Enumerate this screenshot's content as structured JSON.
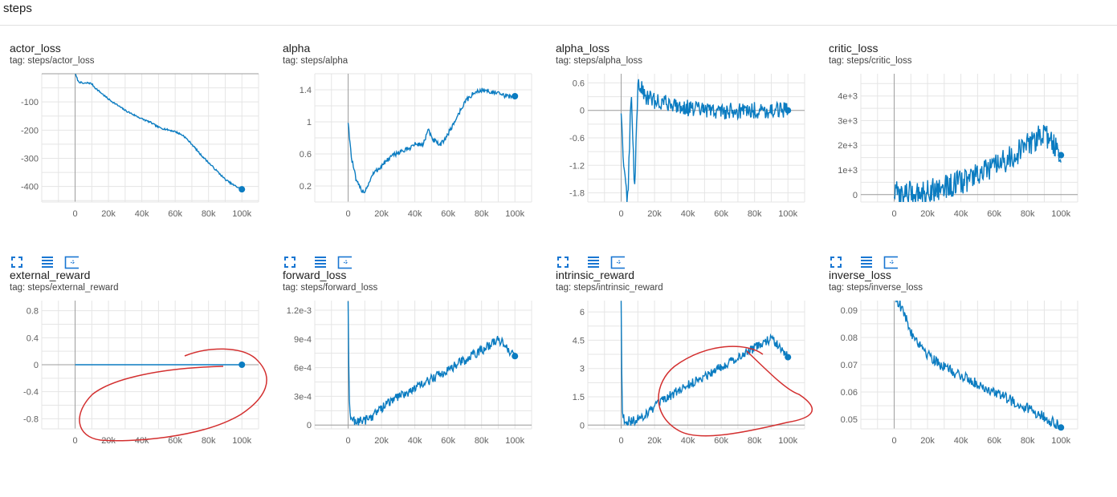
{
  "page": {
    "title": "steps"
  },
  "colors": {
    "line": "#0b7cc1",
    "grid": "#e5e5e5",
    "axis": "#9e9e9e",
    "annotation": "#d32f2f"
  },
  "icons": [
    "fullscreen-icon",
    "toggle-log-scale-icon",
    "fit-domain-icon"
  ],
  "chart_data": [
    {
      "type": "line",
      "title": "actor_loss",
      "tag": "tag: steps/actor_loss",
      "xlim": [
        -20000,
        110000
      ],
      "ylim": [
        -455,
        0
      ],
      "xticks": [
        0,
        20000,
        40000,
        60000,
        80000,
        100000
      ],
      "xtick_labels": [
        "0",
        "20k",
        "40k",
        "60k",
        "80k",
        "100k"
      ],
      "yticks": [
        -100,
        -200,
        -300,
        -400
      ],
      "ytick_labels": [
        "-100",
        "-200",
        "-300",
        "-400"
      ],
      "series": [
        {
          "x": [
            0,
            2000,
            5000,
            8000,
            10000,
            12000,
            15000,
            20000,
            25000,
            30000,
            35000,
            40000,
            45000,
            50000,
            55000,
            60000,
            65000,
            70000,
            75000,
            80000,
            85000,
            90000,
            95000,
            100000
          ],
          "y": [
            0,
            -28,
            -35,
            -32,
            -36,
            -50,
            -65,
            -90,
            -110,
            -130,
            -145,
            -160,
            -172,
            -190,
            -198,
            -205,
            -220,
            -250,
            -285,
            -315,
            -345,
            -375,
            -395,
            -410
          ],
          "noise": 3
        }
      ]
    },
    {
      "type": "line",
      "title": "alpha",
      "tag": "tag: steps/alpha",
      "xlim": [
        -20000,
        110000
      ],
      "ylim": [
        0,
        1.6
      ],
      "xticks": [
        0,
        20000,
        40000,
        60000,
        80000,
        100000
      ],
      "xtick_labels": [
        "0",
        "20k",
        "40k",
        "60k",
        "80k",
        "100k"
      ],
      "yticks": [
        0.2,
        0.6,
        1,
        1.4
      ],
      "ytick_labels": [
        "0.2",
        "0.6",
        "1",
        "1.4"
      ],
      "series": [
        {
          "x": [
            0,
            2000,
            5000,
            8000,
            10000,
            12000,
            15000,
            20000,
            25000,
            30000,
            35000,
            40000,
            45000,
            48000,
            50000,
            55000,
            60000,
            65000,
            70000,
            75000,
            80000,
            85000,
            90000,
            95000,
            100000
          ],
          "y": [
            1.0,
            0.55,
            0.25,
            0.15,
            0.13,
            0.22,
            0.35,
            0.45,
            0.55,
            0.62,
            0.65,
            0.72,
            0.72,
            0.9,
            0.8,
            0.7,
            0.85,
            1.05,
            1.25,
            1.35,
            1.4,
            1.38,
            1.35,
            1.32,
            1.32
          ],
          "noise": 0.03
        }
      ]
    },
    {
      "type": "line",
      "title": "alpha_loss",
      "tag": "tag: steps/alpha_loss",
      "xlim": [
        -20000,
        110000
      ],
      "ylim": [
        -2.0,
        0.8
      ],
      "xticks": [
        0,
        20000,
        40000,
        60000,
        80000,
        100000
      ],
      "xtick_labels": [
        "0",
        "20k",
        "40k",
        "60k",
        "80k",
        "100k"
      ],
      "yticks": [
        0.6,
        0,
        -0.6,
        -1.2,
        -1.8
      ],
      "ytick_labels": [
        "0.6",
        "0",
        "-0.6",
        "-1.2",
        "-1.8"
      ],
      "series": [
        {
          "x": [
            0,
            2000,
            4000,
            6000,
            8000,
            10000,
            15000,
            20000,
            30000,
            40000,
            50000,
            60000,
            70000,
            80000,
            90000,
            100000
          ],
          "y": [
            0,
            -1.5,
            -2.0,
            0.5,
            -1.8,
            0.6,
            0.3,
            0.2,
            0.15,
            0.05,
            0.0,
            -0.02,
            0.0,
            0.0,
            0.0,
            0.0
          ],
          "noise": 0.18
        }
      ]
    },
    {
      "type": "line",
      "title": "critic_loss",
      "tag": "tag: steps/critic_loss",
      "xlim": [
        -20000,
        110000
      ],
      "ylim": [
        -300,
        4900
      ],
      "xticks": [
        0,
        20000,
        40000,
        60000,
        80000,
        100000
      ],
      "xtick_labels": [
        "0",
        "20k",
        "40k",
        "60k",
        "80k",
        "100k"
      ],
      "yticks": [
        0,
        1000,
        2000,
        3000,
        4000
      ],
      "ytick_labels": [
        "0",
        "1e+3",
        "2e+3",
        "3e+3",
        "4e+3"
      ],
      "series": [
        {
          "x": [
            0,
            5000,
            10000,
            20000,
            30000,
            40000,
            50000,
            60000,
            70000,
            80000,
            90000,
            100000
          ],
          "y": [
            50,
            30,
            60,
            150,
            300,
            500,
            800,
            1100,
            1500,
            2000,
            2500,
            1600
          ],
          "noise": 500
        }
      ]
    },
    {
      "type": "line",
      "title": "external_reward",
      "tag": "tag: steps/external_reward",
      "xlim": [
        -20000,
        110000
      ],
      "ylim": [
        -0.95,
        0.95
      ],
      "xticks": [
        0,
        20000,
        40000,
        60000,
        80000,
        100000
      ],
      "xtick_labels": [
        "0",
        "20k",
        "40k",
        "60k",
        "80k",
        "100k"
      ],
      "yticks": [
        0.8,
        0.4,
        0,
        -0.4,
        -0.8
      ],
      "ytick_labels": [
        "0.8",
        "0.4",
        "0",
        "-0.4",
        "-0.8"
      ],
      "series": [
        {
          "x": [
            0,
            100000
          ],
          "y": [
            0,
            0
          ],
          "noise": 0
        }
      ]
    },
    {
      "type": "line",
      "title": "forward_loss",
      "tag": "tag: steps/forward_loss",
      "xlim": [
        -20000,
        110000
      ],
      "ylim": [
        -4e-05,
        0.0013
      ],
      "xticks": [
        0,
        20000,
        40000,
        60000,
        80000,
        100000
      ],
      "xtick_labels": [
        "0",
        "20k",
        "40k",
        "60k",
        "80k",
        "100k"
      ],
      "yticks": [
        0,
        0.0003,
        0.0006,
        0.0009,
        0.0012
      ],
      "ytick_labels": [
        "0",
        "3e-4",
        "6e-4",
        "9e-4",
        "1.2e-3"
      ],
      "series": [
        {
          "x": [
            0,
            500,
            1000,
            3000,
            6000,
            10000,
            15000,
            20000,
            30000,
            40000,
            50000,
            60000,
            70000,
            80000,
            90000,
            100000
          ],
          "y": [
            0.0013,
            0.0004,
            0.0001,
            5e-05,
            4e-05,
            5e-05,
            0.0001,
            0.00018,
            0.0003,
            0.00038,
            0.00048,
            0.00058,
            0.00068,
            0.00078,
            0.0009,
            0.00072
          ],
          "noise": 5e-05
        }
      ]
    },
    {
      "type": "line",
      "title": "intrinsic_reward",
      "tag": "tag: steps/intrinsic_reward",
      "xlim": [
        -20000,
        110000
      ],
      "ylim": [
        -0.2,
        6.6
      ],
      "xticks": [
        0,
        20000,
        40000,
        60000,
        80000,
        100000
      ],
      "xtick_labels": [
        "0",
        "20k",
        "40k",
        "60k",
        "80k",
        "100k"
      ],
      "yticks": [
        0,
        1.5,
        3,
        4.5,
        6
      ],
      "ytick_labels": [
        "0",
        "1.5",
        "3",
        "4.5",
        "6"
      ],
      "series": [
        {
          "x": [
            0,
            500,
            1000,
            3000,
            6000,
            10000,
            15000,
            20000,
            30000,
            40000,
            50000,
            60000,
            70000,
            80000,
            90000,
            100000
          ],
          "y": [
            6.6,
            1.5,
            0.4,
            0.25,
            0.2,
            0.3,
            0.6,
            0.95,
            1.6,
            2.1,
            2.6,
            3.1,
            3.6,
            4.1,
            4.6,
            3.6
          ],
          "noise": 0.25
        }
      ]
    },
    {
      "type": "line",
      "title": "inverse_loss",
      "tag": "tag: steps/inverse_loss",
      "xlim": [
        -20000,
        110000
      ],
      "ylim": [
        0.0465,
        0.0935
      ],
      "xticks": [
        0,
        20000,
        40000,
        60000,
        80000,
        100000
      ],
      "xtick_labels": [
        "0",
        "20k",
        "40k",
        "60k",
        "80k",
        "100k"
      ],
      "yticks": [
        0.05,
        0.06,
        0.07,
        0.08,
        0.09
      ],
      "ytick_labels": [
        "0.05",
        "0.06",
        "0.07",
        "0.08",
        "0.09"
      ],
      "series": [
        {
          "x": [
            0,
            5000,
            10000,
            20000,
            30000,
            40000,
            50000,
            60000,
            70000,
            80000,
            90000,
            100000
          ],
          "y": [
            0.096,
            0.09,
            0.082,
            0.074,
            0.069,
            0.066,
            0.063,
            0.06,
            0.057,
            0.054,
            0.051,
            0.047
          ],
          "noise": 0.002
        }
      ]
    }
  ]
}
